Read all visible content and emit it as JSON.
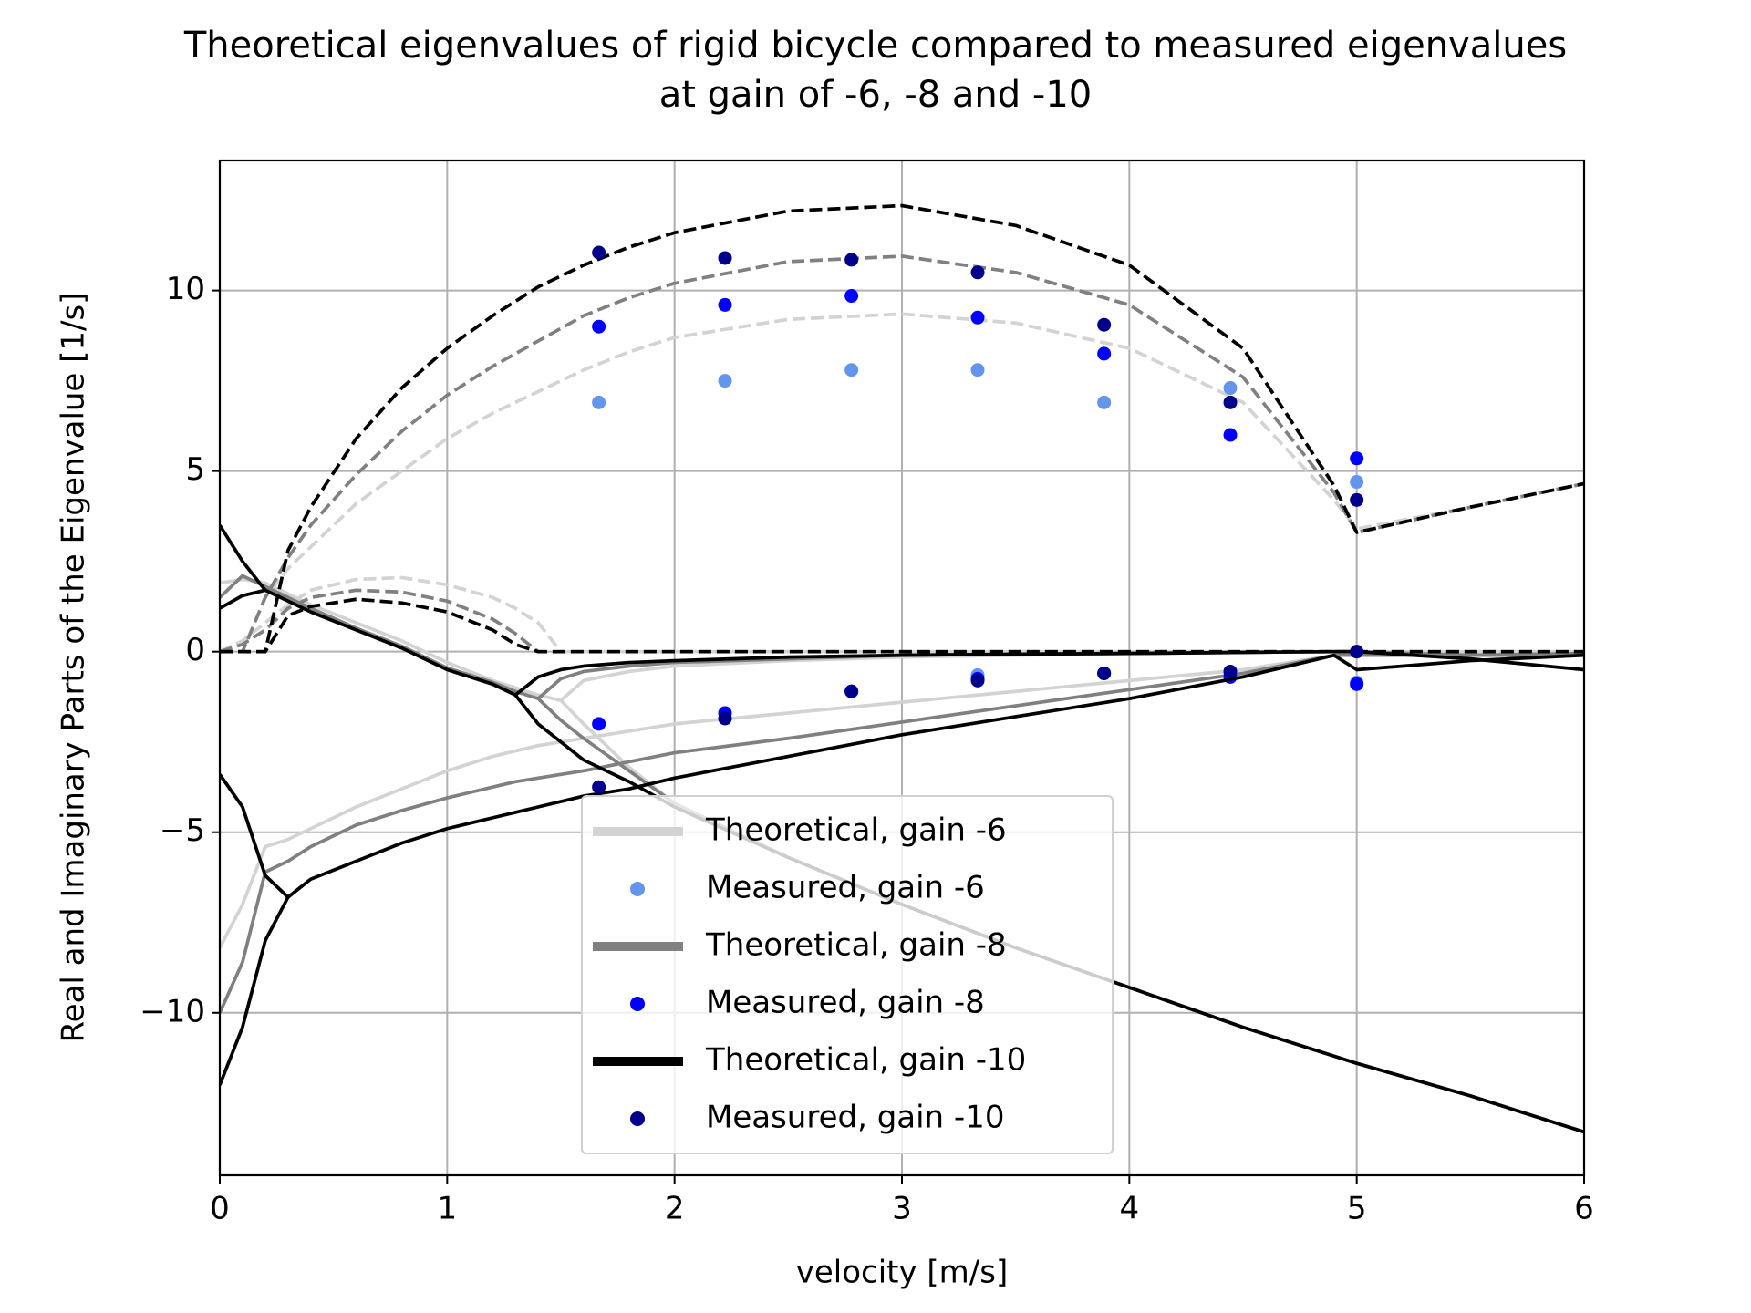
{
  "chart_data": {
    "type": "line",
    "title": [
      "Theoretical eigenvalues of rigid bicycle compared to measured eigenvalues",
      "at gain of -6, -8 and -10"
    ],
    "x_label": "velocity [m/s]",
    "y_label": "Real and Imaginary Parts of the Eigenvalue [1/s]",
    "xlim": [
      0,
      6
    ],
    "ylim": [
      -14.5,
      13.6
    ],
    "xticks": [
      0,
      1,
      2,
      3,
      4,
      5,
      6
    ],
    "yticks": [
      {
        "value": -10,
        "label": "−10"
      },
      {
        "value": -5,
        "label": "−5"
      },
      0,
      5,
      10
    ],
    "grid": true,
    "legend": "lower center",
    "x": [
      0,
      0.1,
      0.2,
      0.3,
      0.4,
      0.6,
      0.8,
      1,
      1.2,
      1.3,
      1.4,
      1.5,
      1.6,
      1.8,
      2,
      2.5,
      3,
      3.5,
      4,
      4.5,
      4.9,
      5,
      5.5,
      6
    ],
    "series": [
      {
        "name": "Theoretical, gain -6",
        "type": "line",
        "color": "#d3d3d3",
        "lines": [
          {
            "dashed": false,
            "values": [
              1.9,
              2.0,
              1.9,
              1.6,
              1.3,
              0.8,
              0.3,
              -0.3,
              -0.8,
              -1.0,
              -1.2,
              -1.35,
              -2.0,
              -3.2,
              -4.2,
              -5.7,
              -7.0,
              -8.2,
              -9.3,
              -10.4,
              -11.2,
              -11.4,
              -12.3,
              -13.3
            ]
          },
          {
            "dashed": false,
            "values": [
              null,
              null,
              null,
              null,
              null,
              null,
              null,
              null,
              null,
              null,
              null,
              -1.35,
              -0.8,
              -0.55,
              -0.4,
              -0.25,
              -0.15,
              -0.1,
              -0.05,
              -0.02,
              0,
              0,
              -0.05,
              -0.05
            ]
          },
          {
            "dashed": false,
            "values": [
              -8.2,
              -7.0,
              -5.4,
              -5.2,
              -4.9,
              -4.3,
              -3.8,
              -3.3,
              -2.9,
              -2.75,
              -2.6,
              -2.5,
              -2.4,
              -2.2,
              -2.0,
              -1.7,
              -1.4,
              -1.1,
              -0.8,
              -0.5,
              -0.1,
              0,
              -0.05,
              0
            ]
          },
          {
            "dashed": true,
            "values": [
              0,
              0.3,
              0.8,
              1.3,
              1.7,
              2.0,
              2.05,
              1.85,
              1.5,
              1.2,
              0.8,
              0,
              0,
              0,
              0,
              0,
              0,
              0,
              0,
              0,
              0,
              0,
              0,
              0
            ]
          },
          {
            "dashed": true,
            "values": [
              0,
              0,
              1.5,
              2.3,
              2.9,
              4.1,
              5.0,
              5.9,
              6.6,
              6.9,
              7.2,
              7.5,
              7.8,
              8.3,
              8.7,
              9.2,
              9.35,
              9.1,
              8.4,
              6.9,
              4.2,
              3.4,
              4.0,
              4.65
            ]
          }
        ]
      },
      {
        "name": "Measured, gain -6",
        "type": "scatter",
        "color": "#6495ed",
        "x": [
          1.667,
          2.222,
          2.778,
          3.333,
          3.889,
          4.444,
          5.0,
          2.222,
          3.333,
          3.889,
          4.444,
          5.0
        ],
        "y": [
          6.9,
          7.5,
          7.8,
          7.8,
          6.9,
          7.3,
          4.7,
          -1.7,
          -0.65,
          -0.6,
          -0.6,
          -0.85
        ]
      },
      {
        "name": "Theoretical, gain -8",
        "type": "line",
        "color": "#808080",
        "lines": [
          {
            "dashed": false,
            "values": [
              1.5,
              2.1,
              1.8,
              1.5,
              1.2,
              0.65,
              0.15,
              -0.45,
              -0.85,
              -1.1,
              -1.3,
              -1.9,
              -2.4,
              -3.3,
              -4.2,
              -5.7,
              -7.0,
              -8.2,
              -9.3,
              -10.4,
              -11.2,
              -11.4,
              -12.3,
              -13.3
            ]
          },
          {
            "dashed": false,
            "values": [
              null,
              null,
              null,
              null,
              null,
              null,
              null,
              null,
              null,
              null,
              -1.3,
              -0.75,
              -0.55,
              -0.4,
              -0.3,
              -0.2,
              -0.1,
              -0.07,
              -0.05,
              -0.02,
              0,
              0,
              -0.1,
              -0.1
            ]
          },
          {
            "dashed": false,
            "values": [
              -10,
              -8.6,
              -6.1,
              -5.8,
              -5.4,
              -4.8,
              -4.4,
              -4.05,
              -3.75,
              -3.6,
              -3.5,
              -3.4,
              -3.3,
              -3.05,
              -2.8,
              -2.4,
              -1.95,
              -1.5,
              -1.05,
              -0.6,
              -0.1,
              -0.1,
              -0.1,
              -0.05
            ]
          },
          {
            "dashed": true,
            "values": [
              0,
              0.2,
              0.6,
              1.2,
              1.5,
              1.7,
              1.65,
              1.4,
              0.9,
              0.5,
              0,
              0,
              0,
              0,
              0,
              0,
              0,
              0,
              0,
              0,
              0,
              0,
              0,
              0
            ]
          },
          {
            "dashed": true,
            "values": [
              0,
              0,
              1.5,
              2.6,
              3.5,
              4.9,
              6.1,
              7.1,
              7.9,
              8.25,
              8.6,
              8.95,
              9.3,
              9.8,
              10.2,
              10.8,
              10.95,
              10.5,
              9.6,
              7.6,
              4.4,
              3.3,
              4.0,
              4.65
            ]
          }
        ]
      },
      {
        "name": "Measured, gain -8",
        "type": "scatter",
        "color": "#0000ff",
        "x": [
          1.667,
          2.222,
          2.778,
          3.333,
          3.889,
          4.444,
          5.0,
          1.667,
          2.222,
          2.778,
          3.333,
          3.889,
          4.444,
          5.0
        ],
        "y": [
          9.0,
          9.6,
          9.85,
          9.25,
          8.25,
          6.0,
          5.35,
          -2.0,
          -1.7,
          -1.1,
          -0.75,
          -0.6,
          -0.7,
          -0.9
        ]
      },
      {
        "name": "Theoretical, gain -10",
        "type": "line",
        "color": "#000000",
        "lines": [
          {
            "dashed": false,
            "values": [
              3.5,
              2.5,
              1.7,
              1.4,
              1.1,
              0.6,
              0.1,
              -0.5,
              -0.9,
              -1.2,
              -2.0,
              -2.5,
              -3.0,
              -3.6,
              -4.3,
              -5.7,
              -7.0,
              -8.2,
              -9.3,
              -10.4,
              -11.2,
              -11.4,
              -12.3,
              -13.3
            ]
          },
          {
            "dashed": false,
            "values": [
              1.2,
              1.55,
              1.7,
              null,
              null,
              null,
              null,
              null,
              null,
              -1.2,
              -0.7,
              -0.5,
              -0.4,
              -0.3,
              -0.25,
              -0.15,
              -0.1,
              -0.07,
              -0.05,
              -0.02,
              0,
              0,
              -0.2,
              -0.5
            ]
          },
          {
            "dashed": false,
            "values": [
              -3.4,
              -4.3,
              -6.2,
              -6.8,
              -6.3,
              -5.8,
              -5.3,
              -4.9,
              -4.6,
              -4.45,
              -4.3,
              -4.15,
              -4.0,
              -3.8,
              -3.5,
              -2.9,
              -2.3,
              -1.8,
              -1.3,
              -0.7,
              -0.1,
              -0.5,
              -0.25,
              -0.1
            ]
          },
          {
            "dashed": false,
            "values": [
              -12,
              -10.4,
              -8.0,
              -6.8,
              null,
              null,
              null,
              null,
              null,
              null,
              null,
              null,
              null,
              null,
              null,
              null,
              null,
              null,
              null,
              null,
              null,
              null,
              null,
              null
            ]
          },
          {
            "dashed": true,
            "values": [
              0,
              0,
              0,
              1.0,
              1.25,
              1.45,
              1.35,
              1.1,
              0.6,
              0.2,
              0,
              0,
              0,
              0,
              0,
              0,
              0,
              0,
              0,
              0,
              0,
              0,
              0,
              0
            ]
          },
          {
            "dashed": true,
            "values": [
              0,
              0,
              0,
              2.8,
              4.0,
              5.9,
              7.3,
              8.4,
              9.3,
              9.7,
              10.1,
              10.4,
              10.7,
              11.2,
              11.6,
              12.2,
              12.35,
              11.8,
              10.7,
              8.4,
              4.6,
              3.3,
              4.0,
              4.65
            ]
          }
        ]
      },
      {
        "name": "Measured, gain -10",
        "type": "scatter",
        "color": "#00008b",
        "x": [
          1.667,
          2.222,
          2.778,
          3.333,
          3.889,
          4.444,
          5.0,
          1.667,
          2.222,
          2.778,
          3.333,
          3.889,
          4.444,
          5.0
        ],
        "y": [
          11.05,
          10.9,
          10.85,
          10.5,
          9.05,
          6.9,
          4.2,
          -3.75,
          -1.85,
          -1.1,
          -0.8,
          -0.6,
          -0.55,
          0
        ]
      }
    ]
  }
}
